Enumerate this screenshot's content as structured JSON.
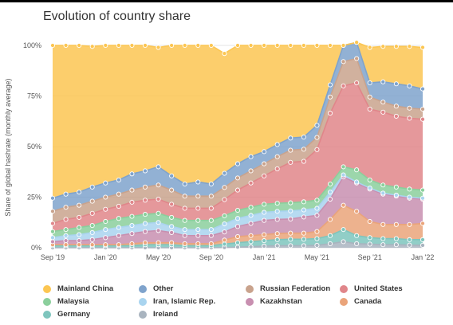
{
  "chart_data": {
    "type": "area",
    "title": "Evolution of country share",
    "ylabel": "Share of global hashrate (monthly average)",
    "xlabel": "",
    "stacked": true,
    "ylim": [
      0,
      100
    ],
    "y_ticks": [
      "0%",
      "25%",
      "50%",
      "75%",
      "100%"
    ],
    "x_ticks": [
      "Sep '19",
      "Jan '20",
      "May '20",
      "Sep '20",
      "Jan '21",
      "May '21",
      "Sep '21",
      "Jan '22"
    ],
    "x": [
      "2019-09",
      "2019-10",
      "2019-11",
      "2019-12",
      "2020-01",
      "2020-02",
      "2020-03",
      "2020-04",
      "2020-05",
      "2020-06",
      "2020-07",
      "2020-08",
      "2020-09",
      "2020-10",
      "2020-11",
      "2020-12",
      "2021-01",
      "2021-02",
      "2021-03",
      "2021-04",
      "2021-05",
      "2021-06",
      "2021-07",
      "2021-08",
      "2021-09",
      "2021-10",
      "2021-11",
      "2021-12",
      "2022-01"
    ],
    "legend_position": "bottom",
    "grid": "horizontal",
    "series": [
      {
        "name": "Ireland",
        "color": "#a9b4bf",
        "values": [
          0,
          0,
          0,
          0,
          0,
          0,
          0,
          0,
          0,
          0,
          0,
          0,
          0,
          0.1,
          0.3,
          0.5,
          0.8,
          1,
          1,
          1,
          1.2,
          2,
          3,
          2,
          1.8,
          1.5,
          1.5,
          1.3,
          1.2
        ]
      },
      {
        "name": "Germany",
        "color": "#7ec5bd",
        "values": [
          1,
          1,
          1,
          1,
          1,
          1,
          1,
          1.5,
          1.5,
          1.5,
          1,
          1,
          1,
          1.7,
          2.2,
          2.5,
          2.7,
          3,
          3.2,
          3.2,
          3.3,
          4,
          6,
          4,
          3.2,
          3,
          3,
          2.7,
          2.8
        ]
      },
      {
        "name": "Canada",
        "color": "#eaa47a",
        "values": [
          0.5,
          0.5,
          0.5,
          0.5,
          0.5,
          0.5,
          1,
          1,
          1,
          1,
          1,
          1,
          1,
          2,
          3,
          3,
          3,
          3,
          3,
          3,
          3.5,
          8,
          12,
          12,
          8,
          7,
          7,
          7.5,
          8
        ]
      },
      {
        "name": "Kazakhstan",
        "color": "#c88fb0",
        "values": [
          1.5,
          2,
          2,
          2.5,
          3.5,
          4.5,
          5,
          5.5,
          6,
          5,
          4,
          4,
          4,
          4,
          5,
          6,
          7,
          7,
          7,
          8,
          8,
          10,
          14,
          14,
          16,
          15,
          14,
          13,
          12
        ]
      },
      {
        "name": "Iran, Islamic Rep.",
        "color": "#a9d4ef",
        "values": [
          2,
          2.5,
          3,
          3.5,
          4,
          4,
          4,
          4,
          4,
          3,
          3,
          3,
          3,
          4,
          4,
          4,
          4,
          4,
          4,
          3.5,
          3.5,
          3.5,
          1,
          0.5,
          0.5,
          0.5,
          0.5,
          0.5,
          0.5
        ]
      },
      {
        "name": "Malaysia",
        "color": "#8bcf9c",
        "values": [
          3,
          3,
          3.5,
          3.5,
          4,
          4.5,
          4.5,
          4.5,
          4.5,
          4.5,
          4.5,
          4.5,
          4.5,
          4,
          4,
          4,
          4,
          4,
          4,
          4,
          4,
          4,
          4,
          6,
          4,
          4,
          4,
          4,
          4
        ]
      },
      {
        "name": "United States",
        "color": "#e0868a",
        "values": [
          4,
          5,
          5,
          6,
          6,
          6,
          7,
          7,
          7,
          6.5,
          6,
          6,
          6,
          8,
          10,
          12,
          14,
          17,
          20,
          20,
          25,
          35,
          40,
          43,
          35,
          36,
          35,
          35,
          35
        ]
      },
      {
        "name": "Russian Federation",
        "color": "#c9a38d",
        "values": [
          6,
          6,
          6,
          6,
          6,
          6,
          6,
          6.5,
          7,
          7,
          6,
          6,
          6,
          6,
          6,
          6,
          6,
          6,
          6,
          6,
          6,
          8,
          12,
          12,
          6,
          5,
          5,
          5,
          5
        ]
      },
      {
        "name": "Other",
        "color": "#7fa3cc",
        "values": [
          6.5,
          6.5,
          6.5,
          7,
          7,
          7,
          8,
          8,
          9,
          7,
          6,
          7,
          6,
          7,
          7,
          7,
          6,
          6,
          6,
          6,
          6,
          6,
          8,
          8,
          7,
          10,
          11,
          11,
          10
        ]
      },
      {
        "name": "Mainland China",
        "color": "#fcc652",
        "values": [
          75.5,
          73.5,
          72.5,
          69.5,
          68,
          66.5,
          63.5,
          62,
          59,
          64.5,
          68.5,
          67.5,
          68.5,
          59.2,
          58.5,
          55,
          52.5,
          49,
          45.8,
          45.3,
          39.5,
          19.5,
          0,
          0,
          17.5,
          17.5,
          18.5,
          19.5,
          20.5
        ]
      }
    ]
  },
  "legend": {
    "items": [
      {
        "label": "Mainland China",
        "color": "#fcc652"
      },
      {
        "label": "Other",
        "color": "#7fa3cc"
      },
      {
        "label": "Russian Federation",
        "color": "#c9a38d"
      },
      {
        "label": "United States",
        "color": "#e0868a"
      },
      {
        "label": "Malaysia",
        "color": "#8bcf9c"
      },
      {
        "label": "Iran, Islamic Rep.",
        "color": "#a9d4ef"
      },
      {
        "label": "Kazakhstan",
        "color": "#c88fb0"
      },
      {
        "label": "Canada",
        "color": "#eaa47a"
      },
      {
        "label": "Germany",
        "color": "#7ec5bd"
      },
      {
        "label": "Ireland",
        "color": "#a9b4bf"
      }
    ]
  }
}
